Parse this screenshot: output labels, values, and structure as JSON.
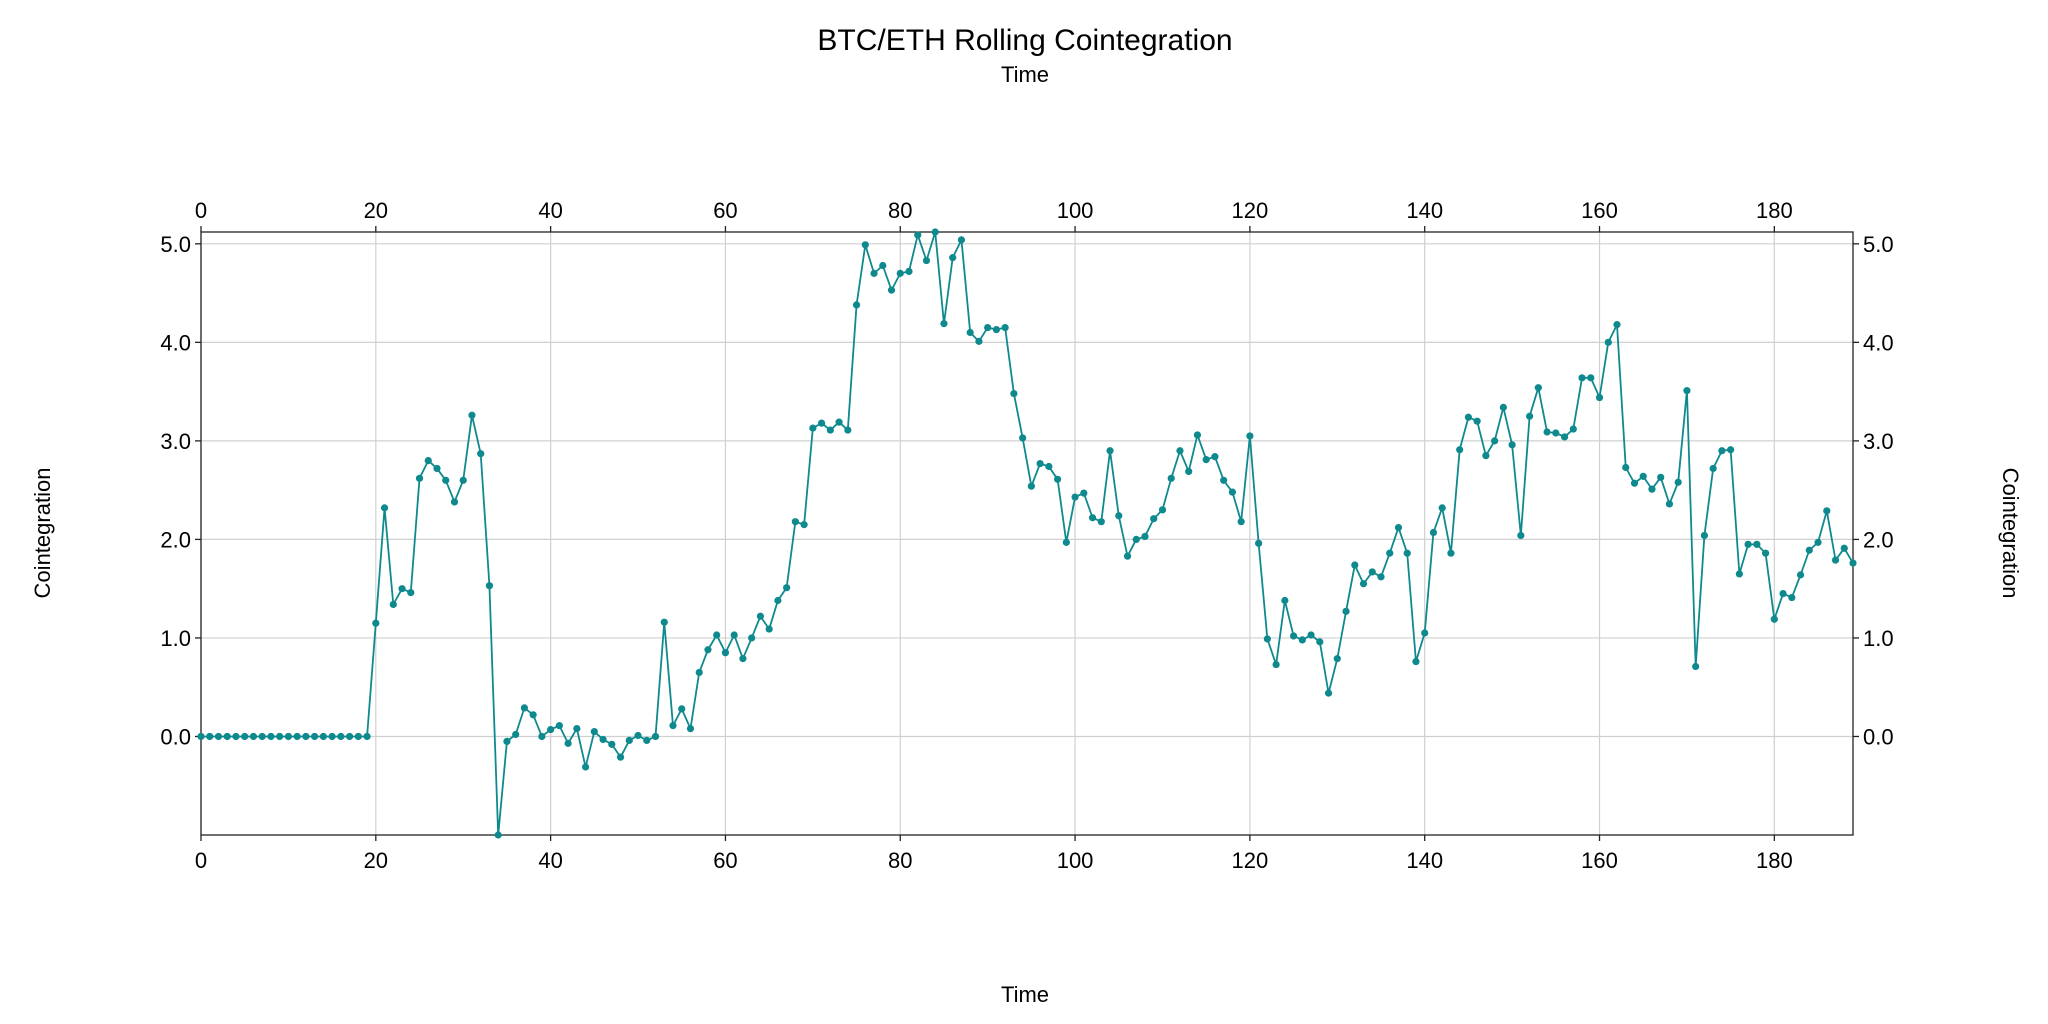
{
  "chart_data": {
    "type": "line",
    "title": "BTC/ETH Rolling Cointegration",
    "xlabel": "Time",
    "ylabel": "Cointegration",
    "xlim": [
      0,
      189
    ],
    "ylim": [
      -1.0,
      5.12
    ],
    "xticks": [
      0,
      20,
      40,
      60,
      80,
      100,
      120,
      140,
      160,
      180
    ],
    "yticks": [
      0.0,
      1.0,
      2.0,
      3.0,
      4.0,
      5.0
    ],
    "ytick_labels": [
      "0.0",
      "1.0",
      "2.0",
      "3.0",
      "4.0",
      "5.0"
    ],
    "grid": true,
    "color": "#0e8a8e",
    "series": [
      {
        "values": [
          0,
          0,
          0,
          0,
          0,
          0,
          0,
          0,
          0,
          0,
          0,
          0,
          0,
          0,
          0,
          0,
          0,
          0,
          0,
          0,
          1.15,
          2.32,
          1.34,
          1.5,
          1.46,
          2.62,
          2.8,
          2.72,
          2.6,
          2.38,
          2.6,
          3.26,
          2.87,
          1.53,
          -1.0,
          -0.05,
          0.02,
          0.29,
          0.22,
          0.0,
          0.07,
          0.11,
          -0.07,
          0.08,
          -0.31,
          0.05,
          -0.03,
          -0.08,
          -0.21,
          -0.04,
          0.01,
          -0.04,
          0.0,
          1.16,
          0.11,
          0.28,
          0.08,
          0.65,
          0.88,
          1.03,
          0.85,
          1.03,
          0.79,
          1.0,
          1.22,
          1.09,
          1.38,
          1.51,
          2.18,
          2.15,
          3.13,
          3.18,
          3.11,
          3.19,
          3.11,
          4.38,
          4.99,
          4.7,
          4.78,
          4.53,
          4.7,
          4.72,
          5.09,
          4.83,
          5.12,
          4.19,
          4.86,
          5.04,
          4.1,
          4.01,
          4.15,
          4.13,
          4.15,
          3.48,
          3.03,
          2.54,
          2.77,
          2.74,
          2.61,
          1.97,
          2.43,
          2.47,
          2.22,
          2.18,
          2.9,
          2.24,
          1.83,
          2.0,
          2.03,
          2.21,
          2.3,
          2.62,
          2.9,
          2.69,
          3.06,
          2.81,
          2.84,
          2.6,
          2.48,
          2.18,
          3.05,
          1.96,
          0.99,
          0.73,
          1.38,
          1.02,
          0.98,
          1.03,
          0.96,
          0.44,
          0.79,
          1.27,
          1.74,
          1.55,
          1.67,
          1.62,
          1.86,
          2.12,
          1.86,
          0.76,
          1.05,
          2.07,
          2.32,
          1.86,
          2.91,
          3.24,
          3.2,
          2.85,
          3.0,
          3.34,
          2.96,
          2.04,
          3.25,
          3.54,
          3.09,
          3.08,
          3.04,
          3.12,
          3.64,
          3.64,
          3.44,
          4.0,
          4.18,
          2.73,
          2.57,
          2.64,
          2.51,
          2.63,
          2.36,
          2.58,
          3.51,
          0.71,
          2.04,
          2.72,
          2.9,
          2.91,
          1.65,
          1.95,
          1.95,
          1.86,
          1.19,
          1.45,
          1.41,
          1.64,
          1.89,
          1.97,
          2.29,
          1.79,
          1.91,
          1.76
        ]
      }
    ]
  }
}
